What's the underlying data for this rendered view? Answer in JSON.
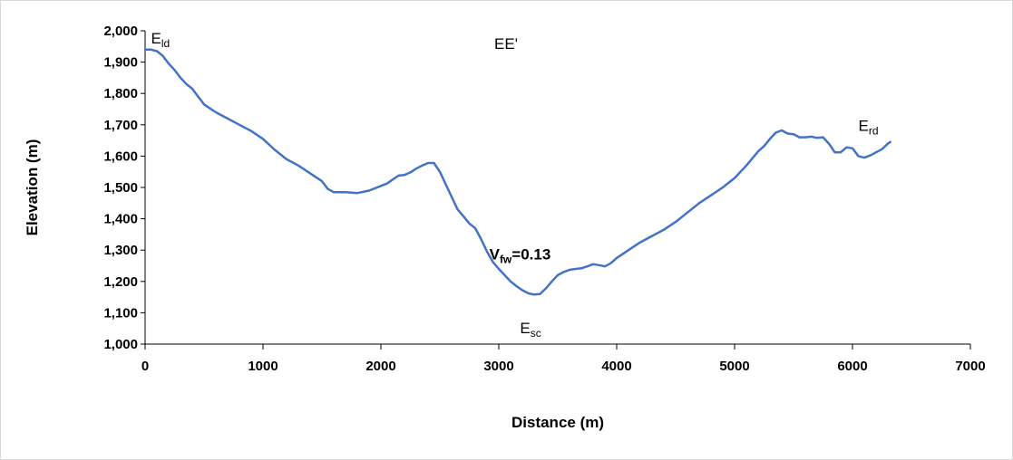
{
  "chart_data": {
    "type": "line",
    "title": "EE'",
    "xlabel": "Distance (m)",
    "ylabel": "Elevation (m)",
    "xlim": [
      0,
      7000
    ],
    "ylim": [
      1000,
      2000
    ],
    "x_ticks": [
      0,
      1000,
      2000,
      3000,
      4000,
      5000,
      6000,
      7000
    ],
    "x_tick_labels": [
      "0",
      "1000",
      "2000",
      "3000",
      "4000",
      "5000",
      "6000",
      "7000"
    ],
    "y_ticks": [
      1000,
      1100,
      1200,
      1300,
      1400,
      1500,
      1600,
      1700,
      1800,
      1900,
      2000
    ],
    "y_tick_labels": [
      "1,000",
      "1,100",
      "1,200",
      "1,300",
      "1,400",
      "1,500",
      "1,600",
      "1,700",
      "1,800",
      "1,900",
      "2,000"
    ],
    "grid": false,
    "line_color": "#4472c4",
    "series": [
      {
        "x": [
          0,
          50,
          100,
          150,
          200,
          250,
          300,
          350,
          400,
          450,
          500,
          600,
          700,
          800,
          900,
          1000,
          1100,
          1200,
          1300,
          1400,
          1500,
          1550,
          1600,
          1700,
          1800,
          1900,
          2000,
          2050,
          2100,
          2150,
          2200,
          2250,
          2300,
          2350,
          2400,
          2450,
          2500,
          2550,
          2600,
          2650,
          2700,
          2750,
          2800,
          2850,
          2900,
          2950,
          3000,
          3050,
          3100,
          3150,
          3200,
          3250,
          3300,
          3350,
          3400,
          3450,
          3500,
          3550,
          3600,
          3650,
          3700,
          3750,
          3800,
          3850,
          3900,
          3950,
          4000,
          4100,
          4200,
          4300,
          4400,
          4500,
          4600,
          4700,
          4800,
          4900,
          5000,
          5100,
          5200,
          5250,
          5300,
          5350,
          5400,
          5450,
          5500,
          5550,
          5600,
          5650,
          5700,
          5750,
          5800,
          5850,
          5900,
          5950,
          6000,
          6050,
          6100,
          6150,
          6200,
          6250,
          6300,
          6320
        ],
        "y": [
          1940,
          1940,
          1935,
          1920,
          1895,
          1875,
          1850,
          1830,
          1815,
          1790,
          1765,
          1740,
          1720,
          1700,
          1680,
          1655,
          1620,
          1590,
          1570,
          1545,
          1520,
          1495,
          1485,
          1485,
          1482,
          1490,
          1505,
          1512,
          1525,
          1538,
          1540,
          1548,
          1560,
          1570,
          1578,
          1578,
          1550,
          1510,
          1470,
          1430,
          1408,
          1385,
          1370,
          1335,
          1295,
          1262,
          1240,
          1220,
          1200,
          1185,
          1172,
          1162,
          1158,
          1160,
          1178,
          1200,
          1220,
          1230,
          1237,
          1240,
          1242,
          1248,
          1255,
          1252,
          1248,
          1258,
          1275,
          1300,
          1325,
          1345,
          1365,
          1390,
          1420,
          1450,
          1475,
          1500,
          1530,
          1570,
          1615,
          1632,
          1655,
          1675,
          1682,
          1672,
          1670,
          1660,
          1660,
          1662,
          1658,
          1660,
          1640,
          1612,
          1612,
          1628,
          1625,
          1600,
          1595,
          1602,
          1612,
          1622,
          1640,
          1645
        ]
      }
    ],
    "annotations": [
      {
        "label": "E",
        "sub": "ld",
        "x": 50,
        "y": 1960
      },
      {
        "label": "E",
        "sub": "rd",
        "x": 6050,
        "y": 1680
      },
      {
        "label": "V",
        "sub": "fw",
        "suffix": "=0.13",
        "x": 2920,
        "y": 1270
      },
      {
        "label": "E",
        "sub": "sc",
        "x": 3180,
        "y": 1035
      }
    ]
  }
}
